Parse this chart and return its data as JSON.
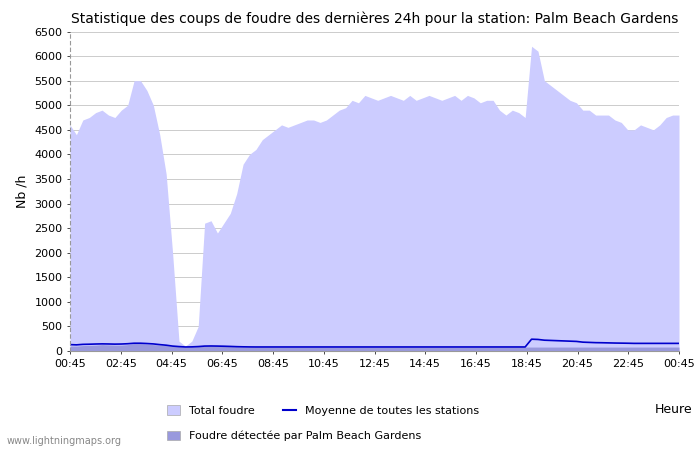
{
  "title": "Statistique des coups de foudre des dernières 24h pour la station: Palm Beach Gardens",
  "xlabel": "Heure",
  "ylabel": "Nb /h",
  "watermark": "www.lightningmaps.org",
  "x_ticks": [
    "00:45",
    "02:45",
    "04:45",
    "06:45",
    "08:45",
    "10:45",
    "12:45",
    "14:45",
    "16:45",
    "18:45",
    "20:45",
    "22:45",
    "00:45"
  ],
  "ylim": [
    0,
    6500
  ],
  "yticks": [
    0,
    500,
    1000,
    1500,
    2000,
    2500,
    3000,
    3500,
    4000,
    4500,
    5000,
    5500,
    6000,
    6500
  ],
  "legend_total": "Total foudre",
  "legend_mean": "Moyenne de toutes les stations",
  "legend_local": "Foudre détectée par Palm Beach Gardens",
  "fill_total_color": "#ccccff",
  "fill_local_color": "#9999dd",
  "line_mean_color": "#0000cc",
  "background_color": "#ffffff",
  "grid_color": "#cccccc",
  "total_foudre": [
    4600,
    4400,
    4700,
    4750,
    4850,
    4900,
    4800,
    4750,
    4900,
    5000,
    5500,
    5500,
    5300,
    5000,
    4400,
    3600,
    2000,
    200,
    100,
    200,
    500,
    2600,
    2650,
    2400,
    2600,
    2800,
    3200,
    3800,
    4000,
    4100,
    4300,
    4400,
    4500,
    4600,
    4550,
    4600,
    4650,
    4700,
    4700,
    4650,
    4700,
    4800,
    4900,
    4950,
    5100,
    5050,
    5200,
    5150,
    5100,
    5150,
    5200,
    5150,
    5100,
    5200,
    5100,
    5150,
    5200,
    5150,
    5100,
    5150,
    5200,
    5100,
    5200,
    5150,
    5050,
    5100,
    5100,
    4900,
    4800,
    4900,
    4850,
    4750,
    6200,
    6100,
    5500,
    5400,
    5300,
    5200,
    5100,
    5050,
    4900,
    4900,
    4800,
    4800,
    4800,
    4700,
    4650,
    4500,
    4500,
    4600,
    4550,
    4500,
    4600,
    4750,
    4800,
    4800
  ],
  "local_foudre": [
    100,
    100,
    110,
    115,
    120,
    130,
    125,
    120,
    120,
    130,
    150,
    150,
    140,
    130,
    120,
    110,
    100,
    90,
    80,
    85,
    90,
    100,
    105,
    100,
    95,
    90,
    85,
    80,
    80,
    80,
    80,
    80,
    80,
    80,
    80,
    80,
    80,
    80,
    80,
    80,
    80,
    80,
    80,
    80,
    80,
    80,
    80,
    80,
    80,
    80,
    80,
    80,
    80,
    80,
    80,
    80,
    80,
    80,
    80,
    80,
    80,
    80,
    80,
    80,
    80,
    80,
    80,
    80,
    80,
    80,
    80,
    80,
    80,
    80,
    80,
    80,
    80,
    80,
    80,
    80,
    80,
    80,
    80,
    80,
    80,
    80,
    80,
    80,
    80,
    80,
    80,
    80,
    80,
    80,
    80,
    80
  ],
  "mean_foudre": [
    130,
    125,
    135,
    138,
    142,
    145,
    143,
    140,
    142,
    148,
    158,
    158,
    152,
    144,
    130,
    118,
    100,
    90,
    82,
    84,
    90,
    100,
    102,
    100,
    97,
    93,
    88,
    85,
    83,
    82,
    82,
    82,
    82,
    82,
    82,
    82,
    82,
    82,
    82,
    82,
    82,
    82,
    82,
    82,
    82,
    82,
    82,
    82,
    82,
    82,
    82,
    82,
    82,
    82,
    82,
    82,
    82,
    82,
    82,
    82,
    82,
    82,
    82,
    82,
    82,
    82,
    82,
    82,
    82,
    82,
    82,
    82,
    240,
    235,
    220,
    215,
    210,
    205,
    200,
    195,
    180,
    175,
    170,
    168,
    165,
    162,
    160,
    158,
    155,
    155,
    155,
    155,
    155,
    155,
    155,
    155
  ]
}
